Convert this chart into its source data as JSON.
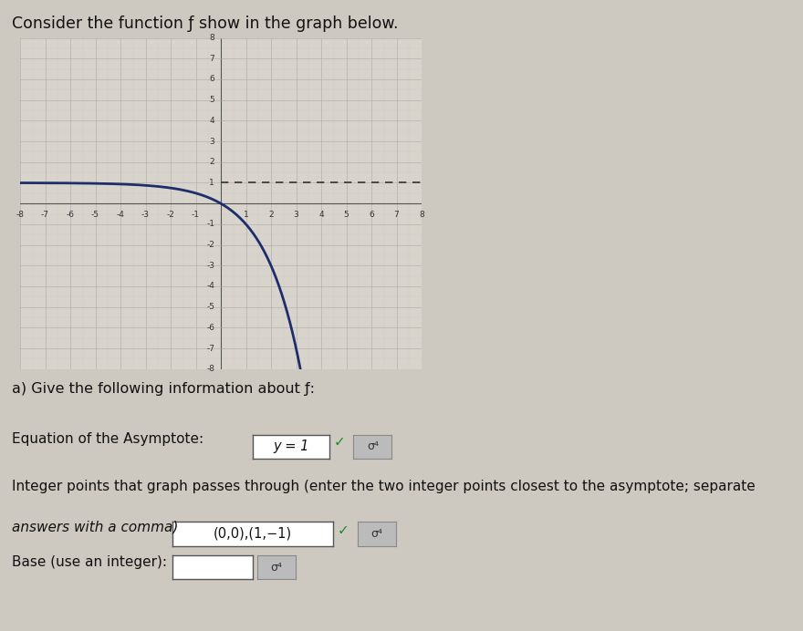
{
  "title": "Consider the function ƒ show in the graph below.",
  "asymptote_y": 1,
  "x_min": -8,
  "x_max": 8,
  "y_min": -8,
  "y_max": 8,
  "curve_color": "#1e2d6b",
  "grid_major_color": "#aaaaaa",
  "grid_minor_color": "#cccccc",
  "axis_color": "#555555",
  "bg_color": "#cdc8c0",
  "graph_bg_color": "#d8d4cc",
  "section_a_text": "a) Give the following information about ƒ:",
  "asymptote_label": "Equation of the Asymptote:",
  "asymptote_answer": "y = 1",
  "integer_points_label": "Integer points that graph passes through (enter the two integer points closest to the asymptote; separate",
  "integer_points_label2": "answers with a comma)",
  "integer_points_answer": "(0,0),(1,−1)",
  "base_label": "Base (use an integer):"
}
